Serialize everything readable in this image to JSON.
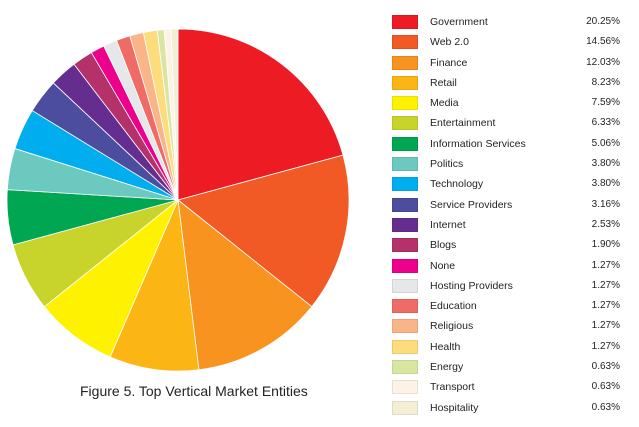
{
  "caption": "Figure 5. Top Vertical Market Entities",
  "chart_data": {
    "type": "pie",
    "title": "",
    "legend_position": "right",
    "start": "top, clockwise",
    "slices": [
      {
        "label": "Government",
        "value": 20.25,
        "value_label": "20.25%",
        "color": "#ed1c24"
      },
      {
        "label": "Web 2.0",
        "value": 14.56,
        "value_label": "14.56%",
        "color": "#f15a24"
      },
      {
        "label": "Finance",
        "value": 12.03,
        "value_label": "12.03%",
        "color": "#f7931e"
      },
      {
        "label": "Retail",
        "value": 8.23,
        "value_label": "8.23%",
        "color": "#fbb515"
      },
      {
        "label": "Media",
        "value": 7.59,
        "value_label": "7.59%",
        "color": "#fff200"
      },
      {
        "label": "Entertainment",
        "value": 6.33,
        "value_label": "6.33%",
        "color": "#c8d42b"
      },
      {
        "label": "Information Services",
        "value": 5.06,
        "value_label": "5.06%",
        "color": "#00a651"
      },
      {
        "label": "Politics",
        "value": 3.8,
        "value_label": "3.80%",
        "color": "#6cc9bf"
      },
      {
        "label": "Technology",
        "value": 3.8,
        "value_label": "3.80%",
        "color": "#00aeef"
      },
      {
        "label": "Service Providers",
        "value": 3.16,
        "value_label": "3.16%",
        "color": "#4c4d9f"
      },
      {
        "label": "Internet",
        "value": 2.53,
        "value_label": "2.53%",
        "color": "#662d91"
      },
      {
        "label": "Blogs",
        "value": 1.9,
        "value_label": "1.90%",
        "color": "#b5316a"
      },
      {
        "label": "None",
        "value": 1.27,
        "value_label": "1.27%",
        "color": "#ec008c"
      },
      {
        "label": "Hosting Providers",
        "value": 1.27,
        "value_label": "1.27%",
        "color": "#e6e7e8"
      },
      {
        "label": "Education",
        "value": 1.27,
        "value_label": "1.27%",
        "color": "#ee6b66"
      },
      {
        "label": "Religious",
        "value": 1.27,
        "value_label": "1.27%",
        "color": "#f9b588"
      },
      {
        "label": "Health",
        "value": 1.27,
        "value_label": "1.27%",
        "color": "#fddc7c"
      },
      {
        "label": "Energy",
        "value": 0.63,
        "value_label": "0.63%",
        "color": "#d7e6a1"
      },
      {
        "label": "Transport",
        "value": 0.63,
        "value_label": "0.63%",
        "color": "#fdf2e6"
      },
      {
        "label": "Hospitality",
        "value": 0.63,
        "value_label": "0.63%",
        "color": "#f4eed5"
      }
    ]
  }
}
